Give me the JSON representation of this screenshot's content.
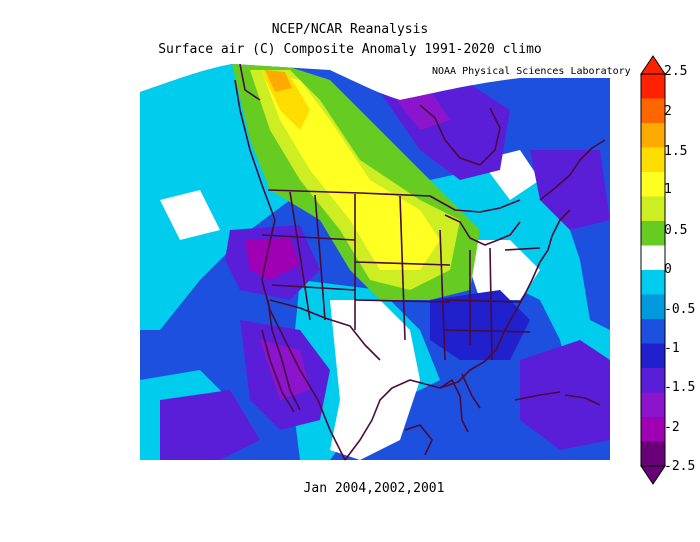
{
  "header": {
    "title_line1": "NCEP/NCAR Reanalysis",
    "title_line2": "Surface air (C) Composite Anomaly 1991-2020 climo",
    "credit": "NOAA Physical Sciences Laboratory"
  },
  "subtitle": "Jan 2004,2002,2001",
  "colorbar": {
    "labels": [
      "2.5",
      "2",
      "1.5",
      "1",
      "0.5",
      "0",
      "-0.5",
      "-1",
      "-1.5",
      "-2",
      "-2.5"
    ],
    "colors": [
      "#FF2200",
      "#FF6600",
      "#FFAA00",
      "#FFDD00",
      "#FFFF22",
      "#CCEE22",
      "#66CC22",
      "#FFFFFF",
      "#00CCEE",
      "#0099DD",
      "#1E50E0",
      "#2020CC",
      "#5A1ED8",
      "#8C14CC",
      "#A000B4",
      "#6A0078"
    ]
  },
  "map_colors": {
    "background": "#1E50E0",
    "land_lines": "#4A0A3A"
  }
}
